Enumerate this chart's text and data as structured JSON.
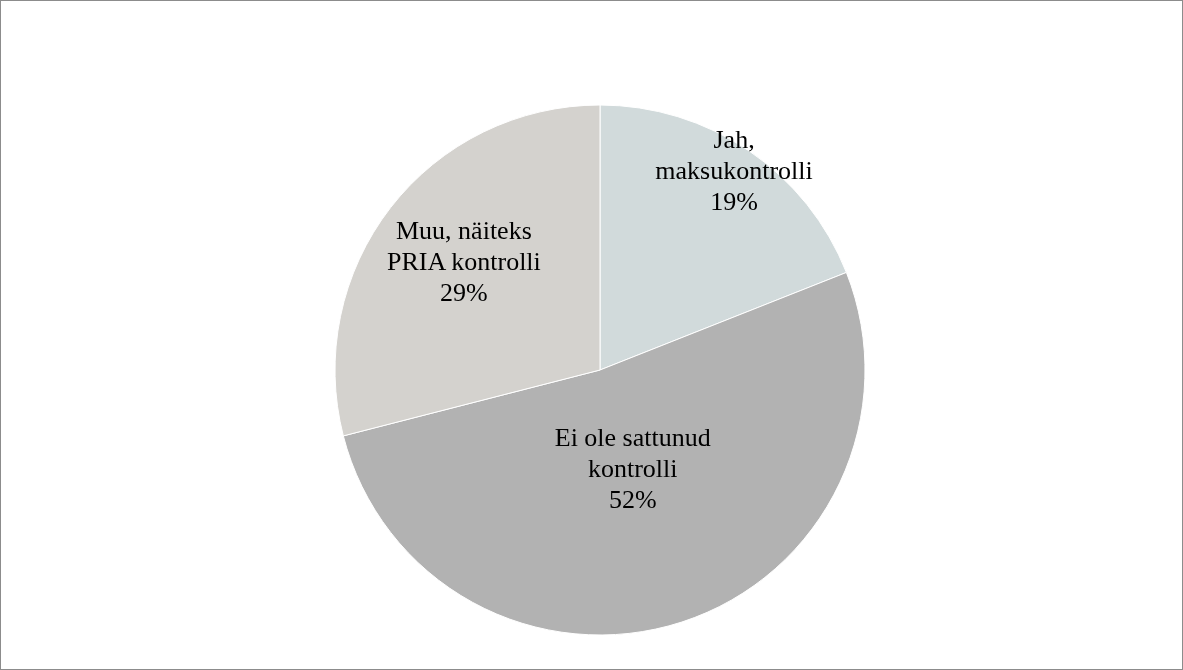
{
  "chart_data": {
    "type": "pie",
    "categories": [
      "Jah, maksukontrolli",
      "Ei ole sattunud kontrolli",
      "Muu, näiteks PRIA kontrolli"
    ],
    "values": [
      19,
      52,
      29
    ],
    "value_labels": [
      "19%",
      "52%",
      "29%"
    ],
    "colors": [
      "#d1dadb",
      "#b2b2b2",
      "#d4d2ce"
    ]
  }
}
